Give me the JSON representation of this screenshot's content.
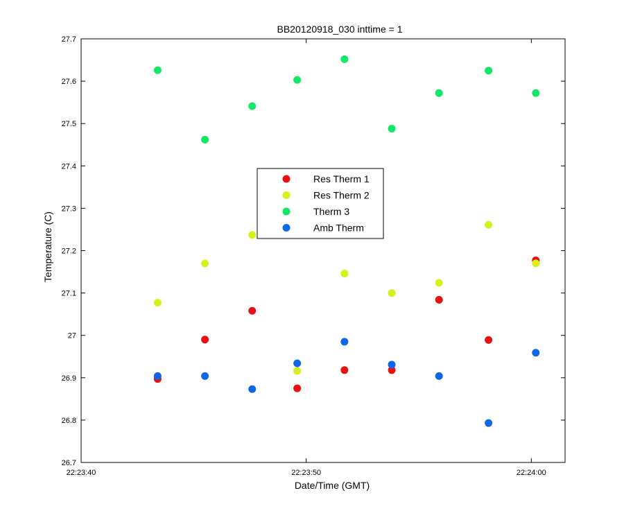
{
  "chart_data": {
    "type": "scatter",
    "title": "BB20120918_030 inttime = 1",
    "xlabel": "Date/Time (GMT)",
    "ylabel": "Temperature (C)",
    "xlim": [
      "22:23:40",
      "22:24:01.5"
    ],
    "ylim": [
      26.7,
      27.7
    ],
    "x_ticks": [
      "22:23:40",
      "22:23:50",
      "22:24:00"
    ],
    "y_ticks": [
      "26.7",
      "26.8",
      "26.9",
      "27",
      "27.1",
      "27.2",
      "27.3",
      "27.4",
      "27.5",
      "27.6",
      "27.7"
    ],
    "grid": false,
    "legend_position": "center",
    "x": [
      "22:23:43.4",
      "22:23:45.5",
      "22:23:47.6",
      "22:23:49.6",
      "22:23:51.7",
      "22:23:53.8",
      "22:23:55.9",
      "22:23:58.1",
      "22:24:00.2"
    ],
    "series": [
      {
        "name": "Res Therm 1",
        "color": "#e81010",
        "values": [
          26.897,
          26.99,
          27.058,
          26.875,
          26.918,
          26.918,
          27.084,
          26.989,
          27.177
        ]
      },
      {
        "name": "Res Therm 2",
        "color": "#d6f01a",
        "values": [
          27.077,
          27.17,
          27.237,
          26.916,
          27.146,
          27.1,
          27.124,
          27.261,
          27.17
        ]
      },
      {
        "name": "Therm 3",
        "color": "#10e866",
        "values": [
          27.626,
          27.462,
          27.541,
          27.603,
          27.652,
          27.488,
          27.572,
          27.625,
          27.572
        ]
      },
      {
        "name": "Amb Therm",
        "color": "#1066e8",
        "values": [
          26.904,
          26.904,
          26.873,
          26.934,
          26.985,
          26.931,
          26.904,
          26.793,
          26.959
        ]
      }
    ]
  }
}
